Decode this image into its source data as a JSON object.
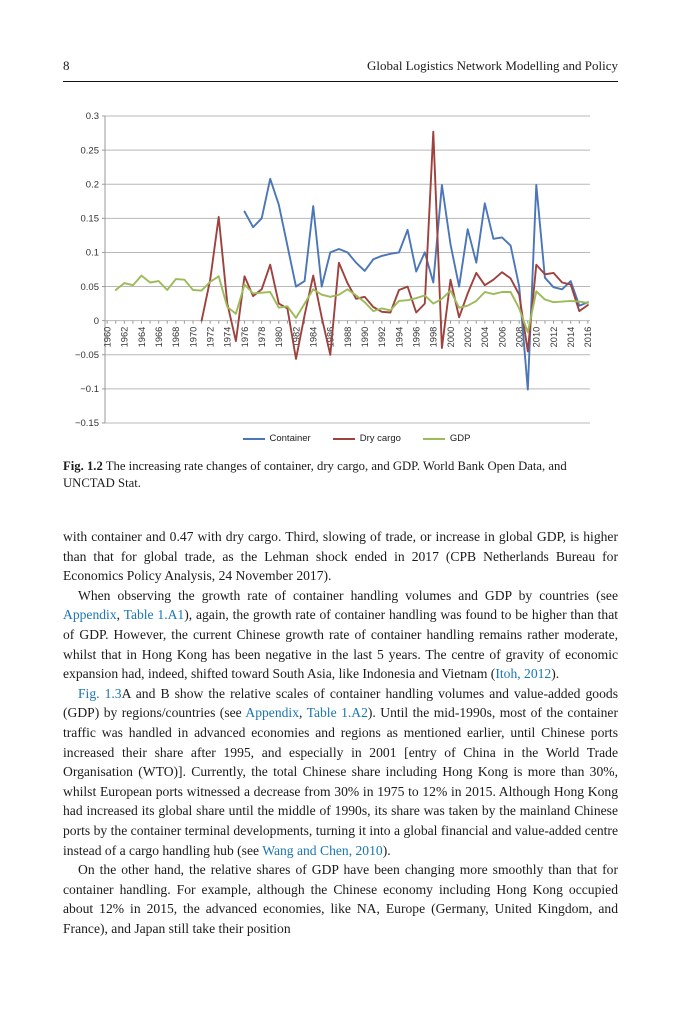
{
  "page": {
    "number": "8",
    "running_title": "Global Logistics Network Modelling and Policy"
  },
  "figure": {
    "label": "Fig. 1.2",
    "caption": "The increasing rate changes of container, dry cargo, and GDP. World Bank Open Data, and UNCTAD Stat."
  },
  "chart_data": {
    "type": "line",
    "title": "",
    "ylim": [
      -0.15,
      0.3
    ],
    "ytick_step": 0.05,
    "ytick_labels": [
      "0.3",
      "0.25",
      "0.2",
      "0.15",
      "0.1",
      "0.05",
      "0",
      "−0.05",
      "−0.1",
      "−0.15"
    ],
    "x_range": [
      1959.75,
      2016.25
    ],
    "xtick_years": [
      1960,
      1962,
      1964,
      1966,
      1968,
      1970,
      1972,
      1974,
      1976,
      1978,
      1980,
      1982,
      1984,
      1986,
      1988,
      1990,
      1992,
      1994,
      1996,
      1998,
      2000,
      2002,
      2004,
      2006,
      2008,
      2010,
      2012,
      2014,
      2016
    ],
    "grid": true,
    "legend_position": "bottom",
    "series": [
      {
        "name": "Container",
        "color": "#4b76b7",
        "start_year": 1976,
        "values": [
          0.16,
          0.137,
          0.15,
          0.208,
          0.17,
          0.11,
          0.05,
          0.058,
          0.168,
          0.05,
          0.1,
          0.105,
          0.1,
          0.085,
          0.073,
          0.09,
          0.095,
          0.098,
          0.1,
          0.133,
          0.072,
          0.1,
          0.056,
          0.199,
          0.112,
          0.05,
          0.134,
          0.085,
          0.172,
          0.12,
          0.122,
          0.11,
          0.05,
          -0.101,
          0.199,
          0.063,
          0.049,
          0.046,
          0.058,
          0.022,
          0.027
        ]
      },
      {
        "name": "Dry cargo",
        "color": "#9e423e",
        "start_year": 1971,
        "values": [
          0.0,
          0.06,
          0.152,
          0.025,
          -0.03,
          0.065,
          0.036,
          0.046,
          0.082,
          0.025,
          0.018,
          -0.056,
          0.008,
          0.066,
          0.005,
          -0.05,
          0.085,
          0.055,
          0.032,
          0.035,
          0.02,
          0.013,
          0.012,
          0.045,
          0.05,
          0.012,
          0.025,
          0.277,
          -0.04,
          0.06,
          0.005,
          0.04,
          0.07,
          0.052,
          0.06,
          0.071,
          0.062,
          0.038,
          -0.045,
          0.082,
          0.068,
          0.07,
          0.056,
          0.053,
          0.014,
          0.023
        ]
      },
      {
        "name": "GDP",
        "color": "#9cbb59",
        "start_year": 1961,
        "values": [
          0.045,
          0.055,
          0.052,
          0.066,
          0.056,
          0.058,
          0.045,
          0.061,
          0.06,
          0.045,
          0.044,
          0.057,
          0.065,
          0.02,
          0.01,
          0.053,
          0.04,
          0.041,
          0.042,
          0.019,
          0.021,
          0.004,
          0.025,
          0.046,
          0.038,
          0.035,
          0.038,
          0.046,
          0.037,
          0.027,
          0.014,
          0.018,
          0.015,
          0.029,
          0.03,
          0.033,
          0.037,
          0.025,
          0.032,
          0.044,
          0.019,
          0.022,
          0.029,
          0.042,
          0.039,
          0.042,
          0.042,
          0.018,
          -0.017,
          0.043,
          0.031,
          0.027,
          0.028,
          0.029,
          0.028,
          0.026
        ]
      }
    ],
    "chart_colors": {
      "grid": "#b8b8b8",
      "axis": "#999999",
      "tick_text": "#333333"
    }
  },
  "body": {
    "paragraphs": [
      {
        "indent": false,
        "segments": [
          {
            "text": "with container and 0.47 with dry cargo. Third, slowing of trade, or increase in global GDP, is higher than that for global trade, as the Lehman shock ended in 2017 (CPB Netherlands Bureau for Economics Policy Analysis, 24 November 2017)."
          }
        ]
      },
      {
        "indent": true,
        "segments": [
          {
            "text": "When observing the growth rate of container handling volumes and GDP by countries (see "
          },
          {
            "text": "Appendix",
            "link": true,
            "name": "link-appendix-1"
          },
          {
            "text": ", "
          },
          {
            "text": "Table 1.A1",
            "link": true,
            "name": "link-table-1a1"
          },
          {
            "text": "), again, the growth rate of container handling was found to be higher than that of GDP. However, the current Chinese growth rate of container handling remains rather moderate, whilst that in Hong Kong has been negative in the last 5 years. The centre of gravity of economic expansion had, indeed, shifted toward South Asia, like Indonesia and Vietnam ("
          },
          {
            "text": "Itoh, 2012",
            "link": true,
            "name": "link-itoh-2012"
          },
          {
            "text": ")."
          }
        ]
      },
      {
        "indent": true,
        "segments": [
          {
            "text": "Fig. 1.3",
            "link": true,
            "name": "link-fig-13"
          },
          {
            "text": "A and B show the relative scales of container handling volumes and value-added goods (GDP) by regions/countries (see "
          },
          {
            "text": "Appendix",
            "link": true,
            "name": "link-appendix-2"
          },
          {
            "text": ", "
          },
          {
            "text": "Table 1.A2",
            "link": true,
            "name": "link-table-1a2"
          },
          {
            "text": "). Until the mid-1990s, most of the container traffic was handled in advanced economies and regions as mentioned earlier, until Chinese ports increased their share after 1995, and especially in 2001 [entry of China in the World Trade Organisation (WTO)]. Currently, the total Chinese share including Hong Kong is more than 30%, whilst European ports witnessed a decrease from 30% in 1975 to 12% in 2015. Although Hong Kong had increased its global share until the middle of 1990s, its share was taken by the mainland Chinese ports by the container terminal developments, turning it into a global financial and value-added centre instead of a cargo handling hub (see "
          },
          {
            "text": "Wang and Chen, 2010",
            "link": true,
            "name": "link-wang-chen-2010"
          },
          {
            "text": ")."
          }
        ]
      },
      {
        "indent": true,
        "segments": [
          {
            "text": "On the other hand, the relative shares of GDP have been changing more smoothly than that for container handling. For example, although the Chinese economy including Hong Kong occupied about 12% in 2015, the advanced economies, like NA, Europe (Germany, United Kingdom, and France), and Japan still take their position"
          }
        ]
      }
    ]
  }
}
